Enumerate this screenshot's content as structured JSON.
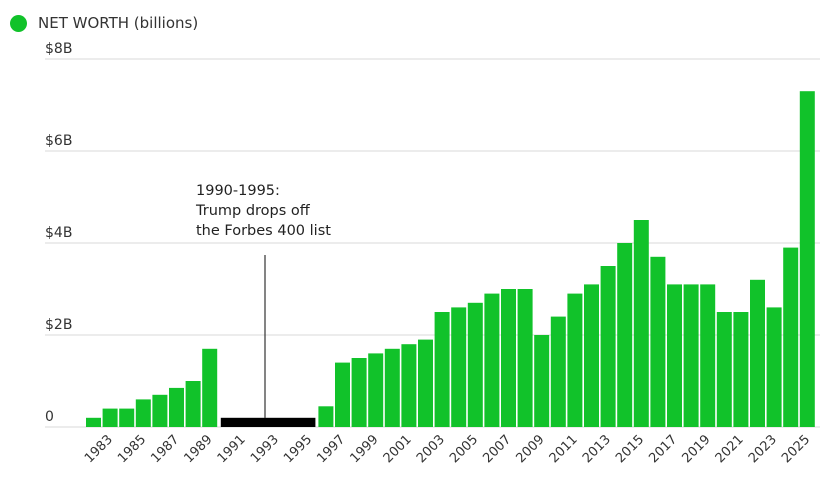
{
  "chart_data": {
    "type": "bar",
    "legend": {
      "label": "NET WORTH (billions)",
      "color": "#11c22a",
      "position": "top-left"
    },
    "ylim": [
      0,
      8
    ],
    "yticks": [
      {
        "value": 0,
        "label": "0"
      },
      {
        "value": 2,
        "label": "$2B"
      },
      {
        "value": 4,
        "label": "$4B"
      },
      {
        "value": 6,
        "label": "$6B"
      },
      {
        "value": 8,
        "label": "$8B"
      }
    ],
    "grid": true,
    "x": [
      1982,
      1983,
      1984,
      1985,
      1986,
      1987,
      1988,
      1989,
      1996,
      1997,
      1998,
      1999,
      2000,
      2001,
      2002,
      2003,
      2004,
      2005,
      2006,
      2007,
      2008,
      2009,
      2010,
      2011,
      2012,
      2013,
      2014,
      2015,
      2016,
      2017,
      2018,
      2019,
      2020,
      2021,
      2022,
      2023,
      2024,
      2025
    ],
    "values": [
      0.2,
      0.4,
      0.4,
      0.6,
      0.7,
      0.85,
      1.0,
      1.7,
      0.45,
      1.4,
      1.5,
      1.6,
      1.7,
      1.8,
      1.9,
      2.5,
      2.6,
      2.7,
      2.9,
      3.0,
      3.0,
      2.0,
      2.4,
      2.9,
      3.1,
      3.5,
      4.0,
      4.5,
      3.7,
      3.1,
      3.1,
      3.1,
      2.5,
      2.5,
      3.2,
      2.6,
      3.9,
      7.3
    ],
    "xtick_labels": [
      "1983",
      "1985",
      "1987",
      "1989",
      "1991",
      "1993",
      "1995",
      "1997",
      "1999",
      "2001",
      "2003",
      "2005",
      "2007",
      "2009",
      "2011",
      "2013",
      "2015",
      "2017",
      "2019",
      "2021",
      "2023",
      "2025"
    ],
    "gap": {
      "from": 1990,
      "to": 1995,
      "color": "#000000"
    },
    "annotation": {
      "lines": [
        "1990-1995:",
        "Trump drops off",
        "the Forbes 400 list"
      ]
    },
    "bar_color": "#11c22a"
  }
}
